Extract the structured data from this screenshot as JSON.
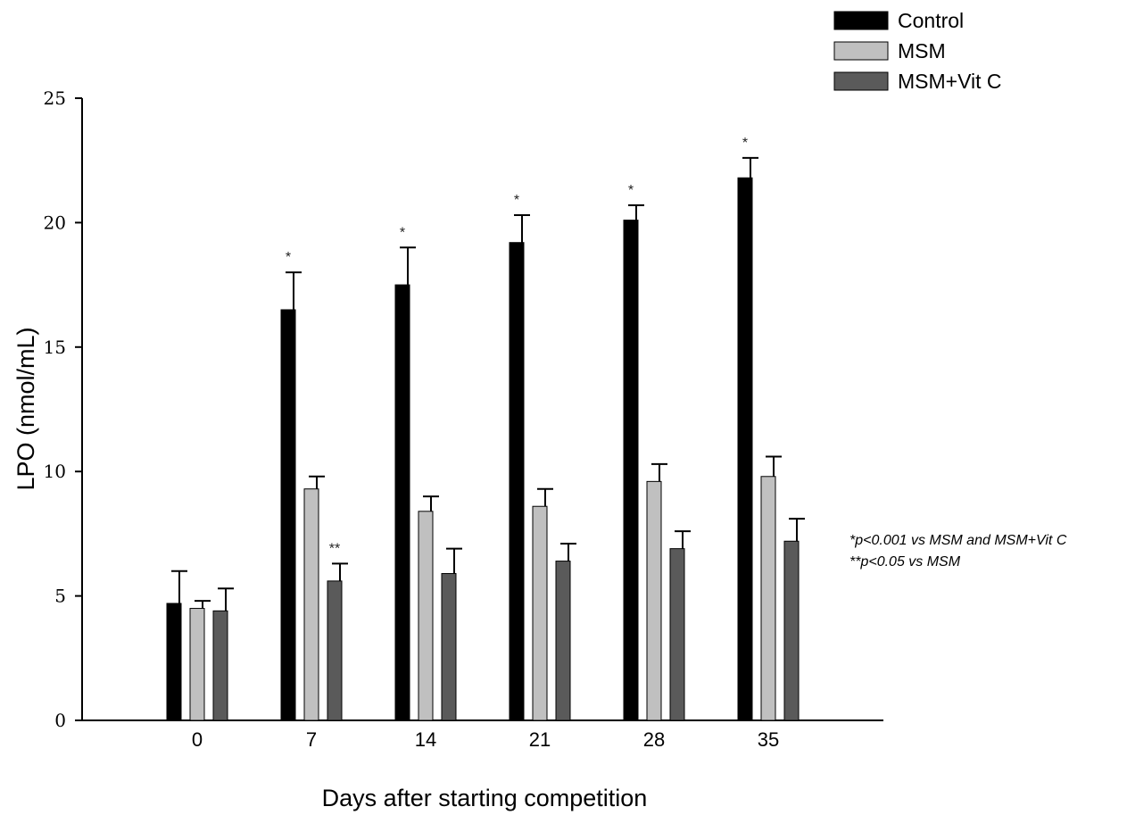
{
  "chart_data": {
    "type": "bar",
    "title": "",
    "xlabel": "Days after starting competition",
    "ylabel": "LPO (nmol/mL)",
    "ylim": [
      0,
      25
    ],
    "yticks": [
      "0",
      "5",
      "10",
      "15",
      "20",
      "25"
    ],
    "categories": [
      "0",
      "7",
      "14",
      "21",
      "28",
      "35"
    ],
    "series": [
      {
        "name": "Control",
        "color": "#000000",
        "values": [
          4.7,
          16.5,
          17.5,
          19.2,
          20.1,
          21.8
        ],
        "errors": [
          1.3,
          1.5,
          1.5,
          1.1,
          0.6,
          0.8
        ],
        "significance": [
          "",
          "*",
          "*",
          "*",
          "*",
          "*"
        ]
      },
      {
        "name": "MSM",
        "color": "#c0c0c0",
        "values": [
          4.5,
          9.3,
          8.4,
          8.6,
          9.6,
          9.8
        ],
        "errors": [
          0.3,
          0.5,
          0.6,
          0.7,
          0.7,
          0.8
        ],
        "significance": [
          "",
          "",
          "",
          "",
          "",
          ""
        ]
      },
      {
        "name": "MSM+Vit C",
        "color": "#5a5a5a",
        "values": [
          4.4,
          5.6,
          5.9,
          6.4,
          6.9,
          7.2
        ],
        "errors": [
          0.9,
          0.7,
          1.0,
          0.7,
          0.7,
          0.9
        ],
        "significance": [
          "",
          "**",
          "",
          "",
          "",
          ""
        ]
      }
    ],
    "legend_position": "top-right",
    "grid": false,
    "annotations": [
      "*p<0.001 vs MSM and MSM+Vit C",
      "**p<0.05 vs MSM"
    ]
  }
}
